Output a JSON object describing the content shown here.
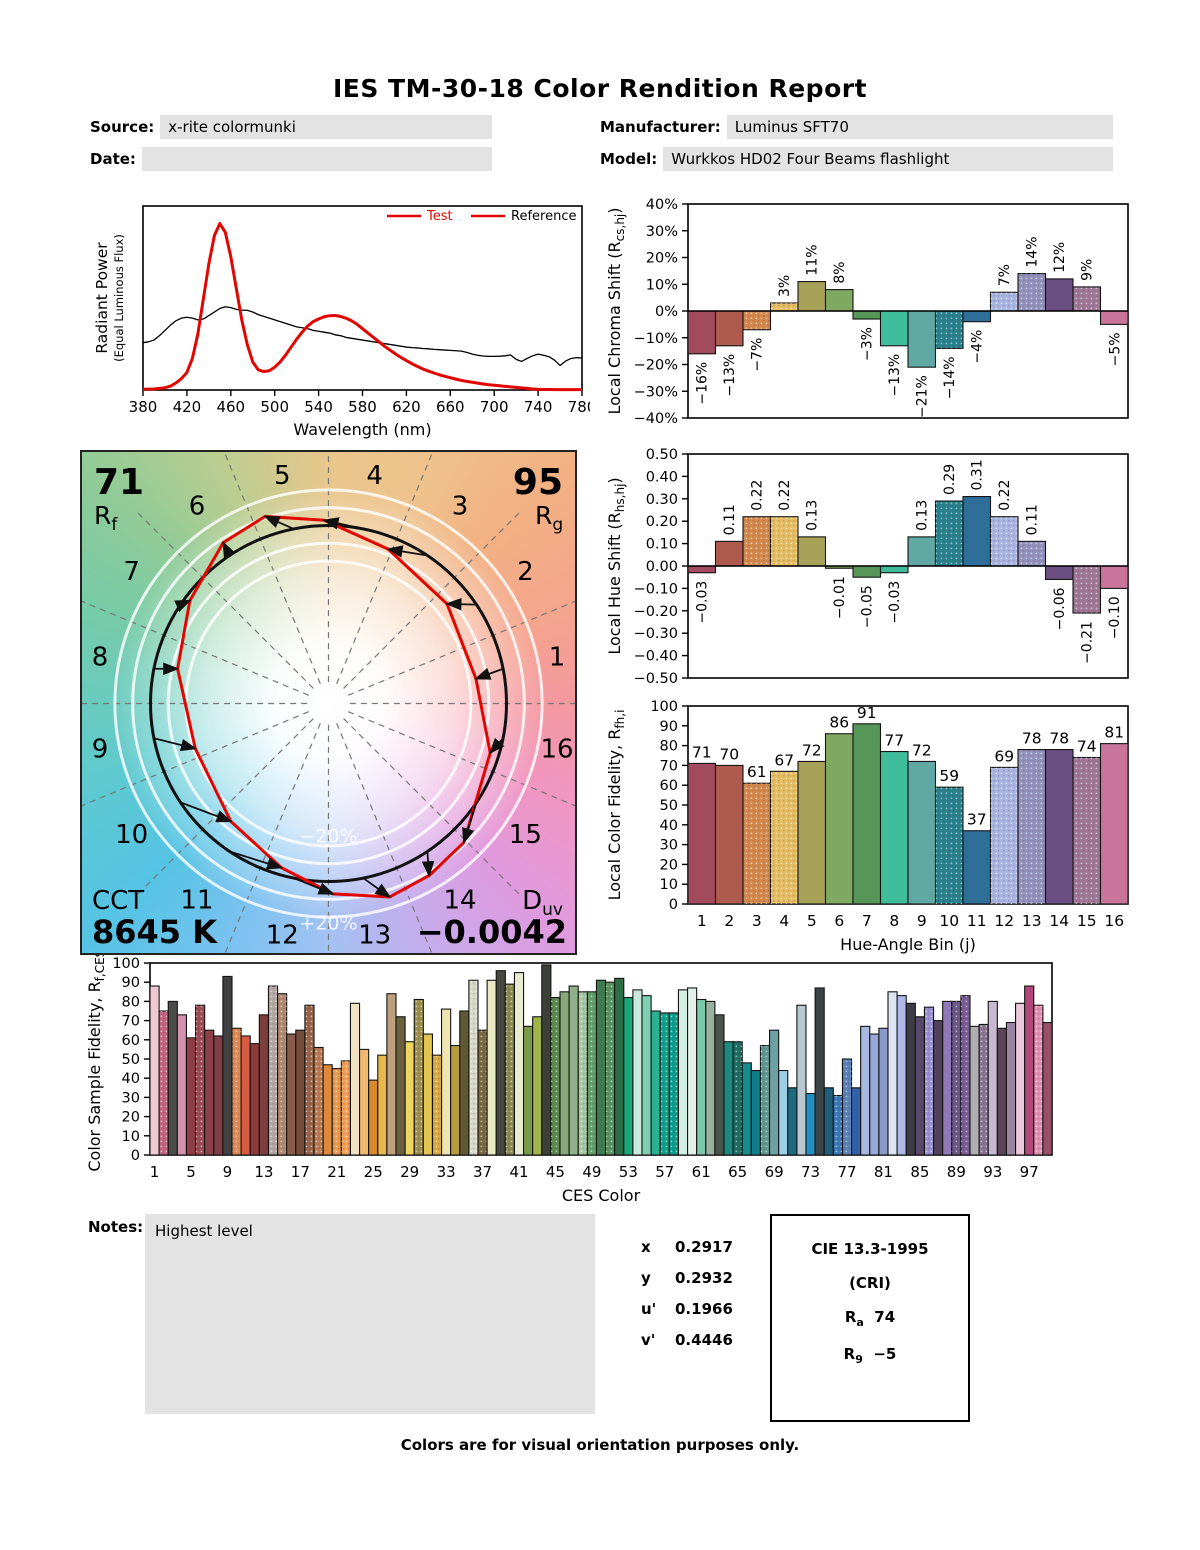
{
  "report": {
    "title": "IES TM-30-18 Color Rendition Report",
    "source_label": "Source:",
    "source_value": "x-rite colormunki",
    "manufacturer_label": "Manufacturer:",
    "manufacturer_value": "Luminus SFT70",
    "date_label": "Date:",
    "date_value": "",
    "model_label": "Model:",
    "model_value": "Wurkkos HD02 Four Beams flashlight",
    "notes_label": "Notes:",
    "notes_value": "Highest level",
    "footer": "Colors are for visual orientation purposes only."
  },
  "chromaticity": {
    "rows": [
      {
        "label": "x",
        "value": "0.2917"
      },
      {
        "label": "y",
        "value": "0.2932"
      },
      {
        "label": "u'",
        "value": "0.1966"
      },
      {
        "label": "v'",
        "value": "0.4446"
      }
    ]
  },
  "cri_box": {
    "title": "CIE 13.3-1995",
    "subtitle": "(CRI)",
    "rows": [
      {
        "base": "R",
        "sub": "a",
        "value": "74"
      },
      {
        "base": "R",
        "sub": "9",
        "value": "−5"
      }
    ]
  },
  "cvg": {
    "rf_value": "71",
    "rf_base": "R",
    "rf_sub": "f",
    "rg_value": "95",
    "rg_base": "R",
    "rg_sub": "g",
    "cct_label": "CCT",
    "cct_value": "8645 K",
    "duv_base": "D",
    "duv_sub": "uv",
    "duv_value": "−0.0042",
    "plus_ring_label": "+20%",
    "minus_ring_label": "−20%",
    "bin_labels": [
      "1",
      "2",
      "3",
      "4",
      "5",
      "6",
      "7",
      "8",
      "9",
      "10",
      "11",
      "12",
      "13",
      "14",
      "15",
      "16"
    ],
    "reference_color": "#111111",
    "test_color": "#E10600"
  },
  "hue_bin_colors": [
    "#A34B5E",
    "#AF5A4E",
    "#D2874C",
    "#E4BC62",
    "#A8A158",
    "#7FA961",
    "#569659",
    "#3FBD9A",
    "#5FA8A4",
    "#27818C",
    "#2F6E99",
    "#A8B4E0",
    "#9191BC",
    "#6B4F82",
    "#9D7795",
    "#C9749B"
  ],
  "dotted_bins": [
    3,
    4,
    10,
    12,
    13,
    15
  ],
  "chart_data": [
    {
      "id": "spd",
      "type": "line",
      "xlabel": "Wavelength (nm)",
      "ylabel": "Radiant Power",
      "ylabel2": "(Equal Luminous Flux)",
      "x_start": 380,
      "x_step": 5,
      "xlim": [
        380,
        780
      ],
      "ylim": [
        0,
        1.05
      ],
      "xticks": [
        380,
        420,
        460,
        500,
        540,
        580,
        620,
        660,
        700,
        740,
        780
      ],
      "grid": false,
      "legend_position": "top-right",
      "legend": [
        {
          "label": "Test",
          "swatch_color": "#E10600",
          "text_color": "#E10600"
        },
        {
          "label": "Reference",
          "swatch_color": "#E10600",
          "text_color": "#000000"
        }
      ],
      "series": [
        {
          "name": "Test",
          "color": "#E10600",
          "width": 3,
          "values": [
            0.004,
            0.005,
            0.006,
            0.009,
            0.013,
            0.022,
            0.04,
            0.065,
            0.1,
            0.18,
            0.32,
            0.52,
            0.72,
            0.88,
            0.95,
            0.9,
            0.76,
            0.58,
            0.4,
            0.26,
            0.16,
            0.115,
            0.105,
            0.11,
            0.13,
            0.16,
            0.2,
            0.245,
            0.29,
            0.33,
            0.365,
            0.39,
            0.405,
            0.418,
            0.424,
            0.425,
            0.42,
            0.41,
            0.395,
            0.375,
            0.35,
            0.325,
            0.3,
            0.275,
            0.25,
            0.228,
            0.206,
            0.186,
            0.168,
            0.15,
            0.135,
            0.12,
            0.108,
            0.097,
            0.087,
            0.078,
            0.07,
            0.062,
            0.055,
            0.049,
            0.044,
            0.039,
            0.034,
            0.03,
            0.027,
            0.024,
            0.021,
            0.018,
            0.015,
            0.012,
            0.009,
            0.006,
            0.004,
            0.003,
            0.003,
            0.002,
            0.002,
            0.002,
            0.002,
            0.002,
            0.002
          ]
        },
        {
          "name": "Reference",
          "color": "#000000",
          "width": 1.3,
          "values": [
            0.27,
            0.275,
            0.285,
            0.31,
            0.34,
            0.37,
            0.395,
            0.41,
            0.415,
            0.41,
            0.4,
            0.405,
            0.425,
            0.445,
            0.465,
            0.475,
            0.47,
            0.46,
            0.455,
            0.455,
            0.445,
            0.43,
            0.42,
            0.41,
            0.4,
            0.39,
            0.38,
            0.37,
            0.36,
            0.355,
            0.35,
            0.34,
            0.335,
            0.33,
            0.325,
            0.315,
            0.31,
            0.3,
            0.295,
            0.29,
            0.285,
            0.28,
            0.275,
            0.27,
            0.265,
            0.26,
            0.255,
            0.25,
            0.245,
            0.242,
            0.24,
            0.237,
            0.235,
            0.232,
            0.23,
            0.228,
            0.226,
            0.224,
            0.222,
            0.215,
            0.205,
            0.198,
            0.194,
            0.192,
            0.192,
            0.193,
            0.195,
            0.2,
            0.175,
            0.163,
            0.18,
            0.195,
            0.205,
            0.198,
            0.19,
            0.17,
            0.14,
            0.165,
            0.18,
            0.185,
            0.182
          ]
        }
      ]
    },
    {
      "id": "chroma",
      "type": "bar",
      "ylabel_pre": "Local Chroma Shift (R",
      "ylabel_sub": "cs,hj",
      "ylabel_post": ")",
      "ylim": [
        -40,
        40
      ],
      "ytick_step": 10,
      "ytick_format": "pct",
      "label_format": "pct",
      "label_rotated": true,
      "zero_line": true,
      "categories": [
        1,
        2,
        3,
        4,
        5,
        6,
        7,
        8,
        9,
        10,
        11,
        12,
        13,
        14,
        15,
        16
      ],
      "values": [
        -16,
        -13,
        -7,
        3,
        11,
        8,
        -3,
        -13,
        -21,
        -14,
        -4,
        7,
        14,
        12,
        9,
        -5
      ]
    },
    {
      "id": "hue",
      "type": "bar",
      "ylabel_pre": "Local Hue Shift (R",
      "ylabel_sub": "hs,hj",
      "ylabel_post": ")",
      "ylim": [
        -0.5,
        0.5
      ],
      "ytick_step": 0.1,
      "ytick_format": "2dp",
      "label_format": "2dp",
      "label_rotated": true,
      "zero_line": true,
      "categories": [
        1,
        2,
        3,
        4,
        5,
        6,
        7,
        8,
        9,
        10,
        11,
        12,
        13,
        14,
        15,
        16
      ],
      "values": [
        -0.03,
        0.11,
        0.22,
        0.22,
        0.13,
        -0.01,
        -0.05,
        -0.03,
        0.13,
        0.29,
        0.31,
        0.22,
        0.11,
        -0.06,
        -0.21,
        -0.1
      ]
    },
    {
      "id": "fidelity",
      "type": "bar",
      "ylabel_pre": "Local Color Fidelity, R",
      "ylabel_sub": "fh,i",
      "ylabel_post": "",
      "xlabel": "Hue-Angle Bin (j)",
      "ylim": [
        0,
        100
      ],
      "ytick_step": 10,
      "ytick_format": "int",
      "label_format": "int",
      "label_rotated": false,
      "show_xticks": true,
      "categories": [
        1,
        2,
        3,
        4,
        5,
        6,
        7,
        8,
        9,
        10,
        11,
        12,
        13,
        14,
        15,
        16
      ],
      "values": [
        71,
        70,
        61,
        67,
        72,
        86,
        91,
        77,
        72,
        59,
        37,
        69,
        78,
        78,
        74,
        81
      ]
    },
    {
      "id": "ces",
      "type": "bar",
      "ylabel_pre": "Color Sample Fidelity, R",
      "ylabel_sub": "f,CESi",
      "ylabel_post": "",
      "xlabel": "CES Color",
      "ylim": [
        0,
        100
      ],
      "ytick_step": 10,
      "ytick_format": "int",
      "label_format": "none",
      "label_rotated": false,
      "show_xticks": true,
      "xtick_values": [
        1,
        5,
        9,
        13,
        17,
        21,
        25,
        29,
        33,
        37,
        41,
        45,
        49,
        53,
        57,
        61,
        65,
        69,
        73,
        77,
        81,
        85,
        89,
        93,
        97
      ],
      "categories_count": 99,
      "values": [
        88,
        75,
        80,
        73,
        61,
        78,
        65,
        62,
        93,
        66,
        62,
        58,
        73,
        88,
        84,
        63,
        65,
        78,
        56,
        47,
        45,
        49,
        79,
        55,
        39,
        52,
        84,
        72,
        59,
        81,
        63,
        52,
        76,
        57,
        75,
        91,
        65,
        91,
        96,
        89,
        95,
        67,
        72,
        99,
        82,
        85,
        88,
        85,
        85,
        91,
        90,
        92,
        82,
        86,
        83,
        75,
        74,
        74,
        86,
        87,
        81,
        80,
        73,
        59,
        59,
        48,
        44,
        57,
        65,
        44,
        35,
        78,
        32,
        87,
        35,
        31,
        50,
        35,
        67,
        63,
        66,
        85,
        83,
        79,
        72,
        77,
        70,
        80,
        80,
        83,
        67,
        68,
        80,
        66,
        69,
        79,
        88,
        78,
        69
      ],
      "colors": [
        "#EFC8D3",
        "#C2637F",
        "#4B4B49",
        "#D392A9",
        "#8F3B43",
        "#9C4B55",
        "#8C4149",
        "#7F3D45",
        "#404140",
        "#DE8A52",
        "#D85C45",
        "#8D3B39",
        "#7D3F3D",
        "#B2A7A3",
        "#AD8971",
        "#8A5C49",
        "#754D3D",
        "#97654B",
        "#BA7951",
        "#DE883A",
        "#E99A4E",
        "#EFA057",
        "#F2E2C4",
        "#F0B873",
        "#D98A2C",
        "#E8B84D",
        "#BFA07D",
        "#6B603C",
        "#EED460",
        "#9C8F4B",
        "#E3C450",
        "#D8A93E",
        "#EFE3B1",
        "#B89D40",
        "#5F5A34",
        "#D6D8C8",
        "#776840",
        "#E9E9C1",
        "#454840",
        "#8A8A53",
        "#E8EBD1",
        "#7A9A49",
        "#9FB547",
        "#3B4139",
        "#5A8A4F",
        "#87A879",
        "#90B089",
        "#A5C9A3",
        "#62A06B",
        "#3E7A4D",
        "#569560",
        "#2E6E47",
        "#18A879",
        "#C9E9DD",
        "#7ED0B3",
        "#2BB093",
        "#0FA08D",
        "#0C9C8D",
        "#D2EFE4",
        "#E3EFEA",
        "#7BC8AD",
        "#9AB0A3",
        "#49544C",
        "#1D8A81",
        "#1A6E63",
        "#148C8D",
        "#0E7E8B",
        "#5E9691",
        "#6FA0A3",
        "#9CCFE4",
        "#1F6A7F",
        "#B8C8D1",
        "#2090C1",
        "#3A4449",
        "#205F79",
        "#3878B9",
        "#5880B9",
        "#3060A9",
        "#A8B8E1",
        "#98A8D9",
        "#8898C9",
        "#DCE3F3",
        "#B0B8E9",
        "#3C3C45",
        "#584869",
        "#9890D1",
        "#514259",
        "#9078B9",
        "#6A5889",
        "#7A5C95",
        "#B0AEB3",
        "#8A7491",
        "#C8B8D1",
        "#5C4459",
        "#9A86A1",
        "#E8C8D9",
        "#B04879",
        "#E090B1",
        "#985069"
      ],
      "dotted": [
        2,
        6,
        10,
        14,
        15,
        18,
        19,
        21,
        22,
        30,
        32,
        36,
        37,
        40,
        45,
        48,
        49,
        51,
        57,
        58,
        65,
        68,
        76,
        77,
        86,
        89,
        90,
        92,
        98
      ]
    }
  ]
}
